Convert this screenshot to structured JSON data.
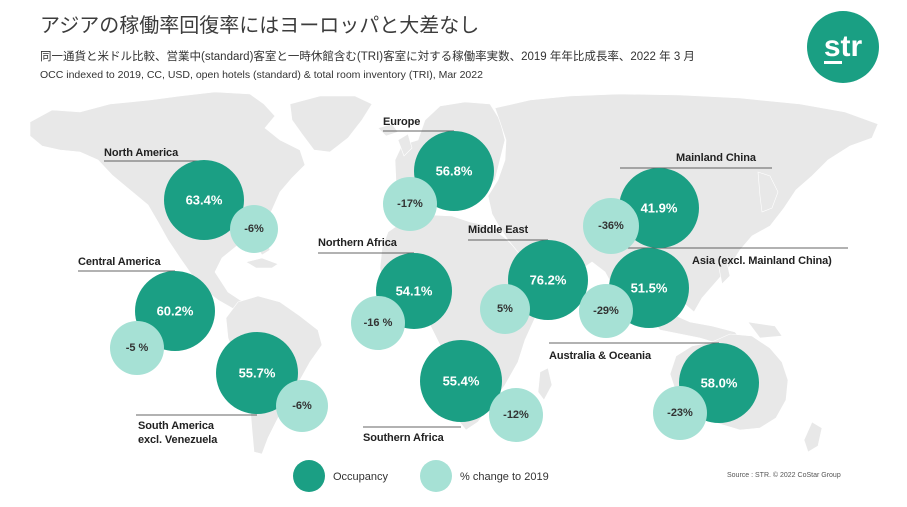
{
  "chart_data": {
    "type": "scatter",
    "title": "アジアの稼働率回復率にはヨーロッパと大差なし",
    "subtitle": "同一通貨と米ドル比較、営業中(standard)客室と一時休館含む(TRI)客室に対する稼働率実数、2019 年年比成長率、2022 年 3 月",
    "subtitle_en": "OCC indexed to 2019, CC, USD, open hotels (standard) & total room inventory (TRI), Mar 2022",
    "categories": [
      "North America",
      "Central America",
      "South America\nexcl. Venezuela",
      "Europe",
      "Northern Africa",
      "Southern Africa",
      "Middle East",
      "Mainland China",
      "Asia (excl. Mainland China)",
      "Australia & Oceania"
    ],
    "series": [
      {
        "name": "Occupancy",
        "values": [
          63.4,
          60.2,
          55.7,
          56.8,
          54.1,
          55.4,
          76.2,
          41.9,
          51.5,
          58.0
        ],
        "labels": [
          "63.4%",
          "60.2%",
          "55.7%",
          "56.8%",
          "54.1%",
          "55.4%",
          "76.2%",
          "41.9%",
          "51.5%",
          "58.0%"
        ]
      },
      {
        "name": "% change to 2019",
        "values": [
          -6,
          -5,
          -6,
          -17,
          -16,
          -12,
          5,
          -36,
          -29,
          -23
        ],
        "labels": [
          "-6%",
          "-5 %",
          "-6%",
          "-17%",
          "-16 %",
          "-12%",
          "5%",
          "-36%",
          "-29%",
          "-23%"
        ]
      }
    ],
    "legend": "bottom",
    "source": "Source : STR. © 2022 CoStar Group"
  },
  "logo": {
    "text": "str"
  },
  "colors": {
    "occupancy": "#1b9f84",
    "change": "#a6e1d5",
    "map": "#e8e8e8",
    "logo": "#1a9f83"
  }
}
